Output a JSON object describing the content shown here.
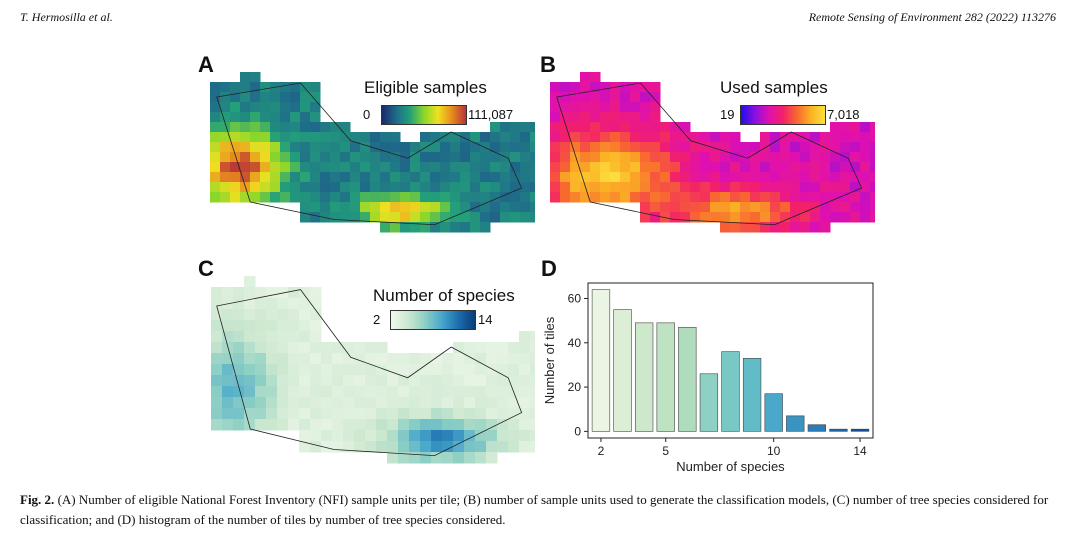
{
  "header": {
    "left": "T. Hermosilla et al.",
    "right": "Remote Sensing of Environment 282 (2022) 113276"
  },
  "panels": {
    "a": {
      "letter": "A",
      "legend_title": "Eligible samples",
      "min": "0",
      "max": "111,087",
      "colors": [
        "#1a2a6c",
        "#1f6a8a",
        "#23a07a",
        "#8ad62a",
        "#f0e020",
        "#e68a1e",
        "#b8323a"
      ]
    },
    "b": {
      "letter": "B",
      "legend_title": "Used samples",
      "min": "19",
      "max": "7,018",
      "colors": [
        "#1e10e8",
        "#8a10e0",
        "#e010b0",
        "#f2206a",
        "#f86830",
        "#fbb224",
        "#fce040"
      ]
    },
    "c": {
      "letter": "C",
      "legend_title": "Number of species",
      "min": "2",
      "max": "14",
      "colors": [
        "#f0f8ec",
        "#cde8d0",
        "#8fd0c4",
        "#49a8cc",
        "#1c6eae",
        "#0c3c7a"
      ]
    },
    "d": {
      "letter": "D"
    }
  },
  "chart_data": {
    "type": "bar",
    "title": "",
    "xlabel": "Number of species",
    "ylabel": "Number of tiles",
    "x": [
      2,
      3,
      4,
      5,
      6,
      7,
      8,
      9,
      10,
      11,
      12,
      13,
      14
    ],
    "values": [
      64,
      55,
      49,
      49,
      47,
      26,
      36,
      33,
      17,
      7,
      3,
      1,
      1
    ],
    "xticks": [
      2,
      5,
      10,
      14
    ],
    "yticks": [
      0,
      20,
      40,
      60
    ],
    "xlim": [
      1.4,
      14.6
    ],
    "ylim": [
      -3,
      67
    ],
    "bar_colors": [
      "#eaf6e3",
      "#dcefd6",
      "#cde8cb",
      "#bfe2c2",
      "#aedcbc",
      "#8fd0c4",
      "#78c8c6",
      "#62bcc8",
      "#4aa8cb",
      "#3a93c0",
      "#2a7db6",
      "#1d66a8",
      "#104f96"
    ]
  },
  "caption": {
    "label": "Fig. 2.",
    "text": "(A) Number of eligible National Forest Inventory (NFI) sample units per tile; (B) number of sample units used to generate the classification models, (C) number of tree species considered for classification; and (D) histogram of the number of tiles by number of tree species considered."
  }
}
